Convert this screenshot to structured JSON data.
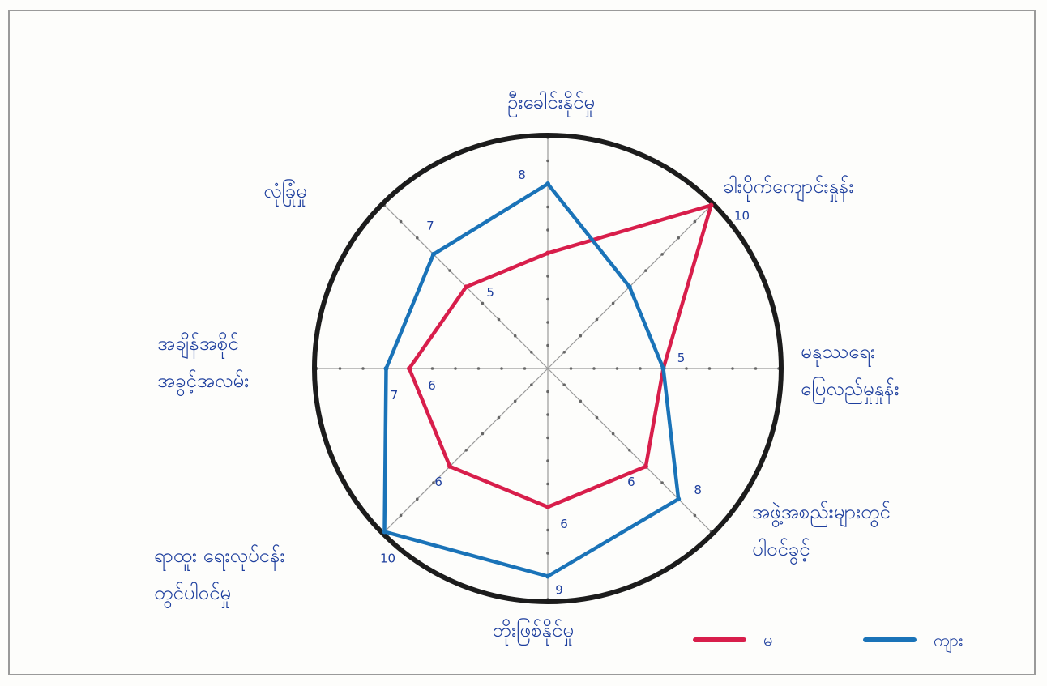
{
  "chart_data": {
    "type": "radar",
    "categories": [
      "ဦးခေါင်းနိုင်မှု",
      "ခါးပိုက်ကျောင်းနှုန်း",
      "မနုဿရေး ပြေလည်မှုနှုန်း",
      "အဖွဲ့အစည်းများတွင် ပါဝင်ခွင့်",
      "ဘိုးဖြစ်နိုင်မှု",
      "ရာထူး ရေးလုပ်ငန်း တွင်ပါဝင်မှု",
      "အချိန်အစိုင် အခွင့်အလမ်း",
      "လုံခြုံမှု"
    ],
    "series": [
      {
        "name": "မ",
        "color": "#d81e4b",
        "values": [
          5,
          10,
          5,
          6,
          6,
          6,
          6,
          5
        ]
      },
      {
        "name": "ကျား",
        "color": "#1a73b8",
        "values": [
          8,
          5,
          5,
          8,
          9,
          10,
          7,
          7
        ]
      }
    ],
    "value_labels": [
      {
        "text": "8",
        "axis": 0
      },
      {
        "text": "10",
        "axis": 1
      },
      {
        "text": "5",
        "axis": 2
      },
      {
        "text": "6",
        "axis": 3
      },
      {
        "text": "8",
        "axis": 3
      },
      {
        "text": "6",
        "axis": 4
      },
      {
        "text": "9",
        "axis": 4
      },
      {
        "text": "6",
        "axis": 5
      },
      {
        "text": "10",
        "axis": 5
      },
      {
        "text": "6",
        "axis": 6
      },
      {
        "text": "7",
        "axis": 6
      },
      {
        "text": "5",
        "axis": 7
      },
      {
        "text": "7",
        "axis": 7
      }
    ],
    "range": [
      0,
      10
    ],
    "grid": "spokes with tick dots",
    "legend": "bottom-right"
  }
}
